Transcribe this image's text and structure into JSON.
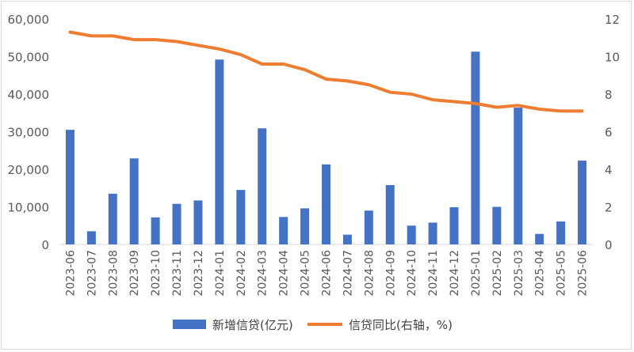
{
  "chart_data": {
    "type": "bar",
    "categories": [
      "2023-06",
      "2023-07",
      "2023-08",
      "2023-09",
      "2023-10",
      "2023-11",
      "2023-12",
      "2024-01",
      "2024-02",
      "2024-03",
      "2024-04",
      "2024-05",
      "2024-06",
      "2024-07",
      "2024-08",
      "2024-09",
      "2024-10",
      "2024-11",
      "2024-12",
      "2025-01",
      "2025-02",
      "2025-03",
      "2025-04",
      "2025-05",
      "2025-06"
    ],
    "series": [
      {
        "name": "新增信贷(亿元)",
        "type": "bar",
        "axis": "left",
        "color": "#4472C4",
        "values": [
          30500,
          3500,
          13500,
          22900,
          7200,
          10800,
          11700,
          49200,
          14500,
          30900,
          7300,
          9600,
          21300,
          2600,
          9000,
          15800,
          5000,
          5800,
          9900,
          51300,
          10000,
          36400,
          2800,
          6100,
          22300
        ]
      },
      {
        "name": "信贷同比(右轴，%)",
        "type": "line",
        "axis": "right",
        "color": "#ED7D31",
        "values": [
          11.3,
          11.1,
          11.1,
          10.9,
          10.9,
          10.8,
          10.6,
          10.4,
          10.1,
          9.6,
          9.6,
          9.3,
          8.8,
          8.7,
          8.5,
          8.1,
          8.0,
          7.7,
          7.6,
          7.5,
          7.3,
          7.4,
          7.2,
          7.1,
          7.1
        ]
      }
    ],
    "y_left": {
      "ticks": [
        "0",
        "10,000",
        "20,000",
        "30,000",
        "40,000",
        "50,000",
        "60,000"
      ],
      "ylim": [
        0,
        60000
      ]
    },
    "y_right": {
      "ticks": [
        "0",
        "2",
        "4",
        "6",
        "8",
        "10",
        "12"
      ],
      "ylim": [
        0,
        12
      ]
    },
    "grid": false,
    "legend_position": "bottom",
    "title": "",
    "xlabel": "",
    "ylabel": ""
  }
}
